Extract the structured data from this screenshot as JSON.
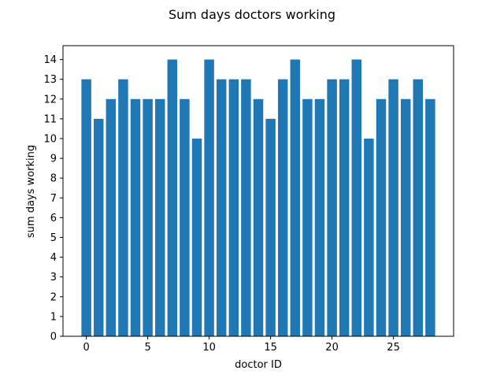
{
  "chart_data": {
    "type": "bar",
    "title": "Sum days doctors working",
    "xlabel": "doctor ID",
    "ylabel": "sum days working",
    "x": [
      0,
      1,
      2,
      3,
      4,
      5,
      6,
      7,
      8,
      9,
      10,
      11,
      12,
      13,
      14,
      15,
      16,
      17,
      18,
      19,
      20,
      21,
      22,
      23,
      24,
      25,
      26,
      27,
      28
    ],
    "values": [
      13,
      11,
      12,
      13,
      12,
      12,
      12,
      14,
      12,
      10,
      14,
      13,
      13,
      13,
      12,
      11,
      13,
      14,
      12,
      12,
      13,
      13,
      14,
      10,
      12,
      13,
      12,
      13,
      12
    ],
    "xlim": [
      -1.9,
      29.9
    ],
    "ylim": [
      0,
      14.7
    ],
    "xticks": [
      0,
      5,
      10,
      15,
      20,
      25
    ],
    "yticks": [
      0,
      1,
      2,
      3,
      4,
      5,
      6,
      7,
      8,
      9,
      10,
      11,
      12,
      13,
      14
    ],
    "bar_color": "#1f77b4",
    "grid": false,
    "legend": "none"
  }
}
